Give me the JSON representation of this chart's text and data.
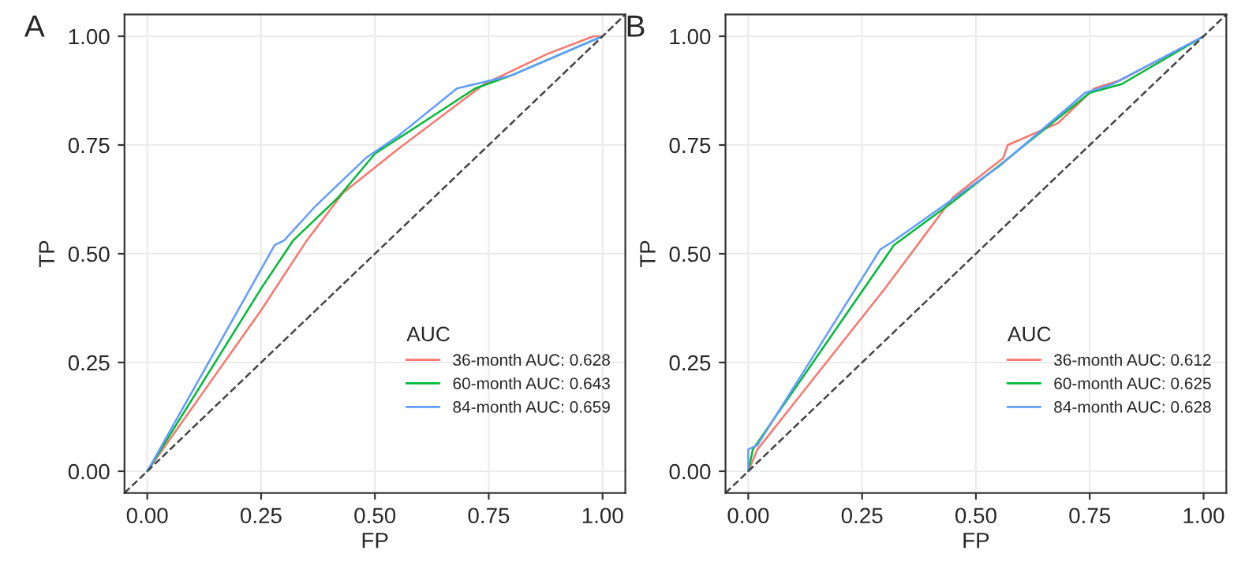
{
  "chart_data": [
    {
      "type": "line",
      "title": "A",
      "xlabel": "FP",
      "ylabel": "TP",
      "legend_title": "AUC",
      "xlim": [
        -0.05,
        1.05
      ],
      "ylim": [
        -0.05,
        1.05
      ],
      "xticks": [
        {
          "value": 0,
          "label": "0.00"
        },
        {
          "value": 0.25,
          "label": "0.25"
        },
        {
          "value": 0.5,
          "label": "0.50"
        },
        {
          "value": 0.75,
          "label": "0.75"
        },
        {
          "value": 1,
          "label": "1.00"
        }
      ],
      "yticks": [
        {
          "value": 0,
          "label": "0.00"
        },
        {
          "value": 0.25,
          "label": "0.25"
        },
        {
          "value": 0.5,
          "label": "0.50"
        },
        {
          "value": 0.75,
          "label": "0.75"
        },
        {
          "value": 1,
          "label": "1.00"
        }
      ],
      "grid": true,
      "legend": "bottom right",
      "series": [
        {
          "name": "36-month AUC: 0.628",
          "color": "#f8766d",
          "x": [
            0,
            0.25,
            0.35,
            0.43,
            0.55,
            0.74,
            0.88,
            0.98,
            1
          ],
          "values": [
            0,
            0.37,
            0.53,
            0.64,
            0.74,
            0.89,
            0.96,
            1.0,
            1.0
          ]
        },
        {
          "name": "60-month AUC: 0.643",
          "color": "#00ba38",
          "x": [
            0,
            0.25,
            0.32,
            0.42,
            0.5,
            0.72,
            0.8,
            1
          ],
          "values": [
            0,
            0.42,
            0.53,
            0.63,
            0.73,
            0.88,
            0.91,
            1.0
          ]
        },
        {
          "name": "84-month AUC: 0.659",
          "color": "#619cff",
          "x": [
            0,
            0.28,
            0.3,
            0.37,
            0.48,
            0.55,
            0.68,
            0.8,
            1
          ],
          "values": [
            0,
            0.52,
            0.53,
            0.61,
            0.72,
            0.77,
            0.88,
            0.91,
            1.0
          ]
        },
        {
          "color": "#444444",
          "line_style": "dashed",
          "x": [
            -0.05,
            1.05
          ],
          "values": [
            -0.05,
            1.05
          ]
        }
      ]
    },
    {
      "type": "line",
      "title": "B",
      "xlabel": "FP",
      "ylabel": "TP",
      "legend_title": "AUC",
      "xlim": [
        -0.05,
        1.05
      ],
      "ylim": [
        -0.05,
        1.05
      ],
      "xticks": [
        {
          "value": 0,
          "label": "0.00"
        },
        {
          "value": 0.25,
          "label": "0.25"
        },
        {
          "value": 0.5,
          "label": "0.50"
        },
        {
          "value": 0.75,
          "label": "0.75"
        },
        {
          "value": 1,
          "label": "1.00"
        }
      ],
      "yticks": [
        {
          "value": 0,
          "label": "0.00"
        },
        {
          "value": 0.25,
          "label": "0.25"
        },
        {
          "value": 0.5,
          "label": "0.50"
        },
        {
          "value": 0.75,
          "label": "0.75"
        },
        {
          "value": 1,
          "label": "1.00"
        }
      ],
      "grid": true,
      "legend": "bottom right",
      "series": [
        {
          "name": "36-month AUC: 0.612",
          "color": "#f8766d",
          "x": [
            0,
            0.02,
            0.3,
            0.45,
            0.56,
            0.57,
            0.68,
            0.76,
            0.82,
            1
          ],
          "values": [
            0,
            0.05,
            0.42,
            0.63,
            0.72,
            0.75,
            0.8,
            0.88,
            0.9,
            1.0
          ]
        },
        {
          "name": "60-month AUC: 0.625",
          "color": "#00ba38",
          "x": [
            0,
            0.01,
            0.32,
            0.45,
            0.56,
            0.75,
            0.82,
            1
          ],
          "values": [
            0,
            0.05,
            0.52,
            0.62,
            0.71,
            0.87,
            0.89,
            1.0
          ]
        },
        {
          "name": "84-month AUC: 0.628",
          "color": "#619cff",
          "x": [
            0,
            0,
            0.02,
            0.29,
            0.32,
            0.55,
            0.74,
            0.8,
            1
          ],
          "values": [
            0,
            0.05,
            0.06,
            0.51,
            0.53,
            0.7,
            0.87,
            0.89,
            1.0
          ]
        },
        {
          "color": "#444444",
          "line_style": "dashed",
          "x": [
            -0.05,
            1.05
          ],
          "values": [
            -0.05,
            1.05
          ]
        }
      ]
    }
  ]
}
